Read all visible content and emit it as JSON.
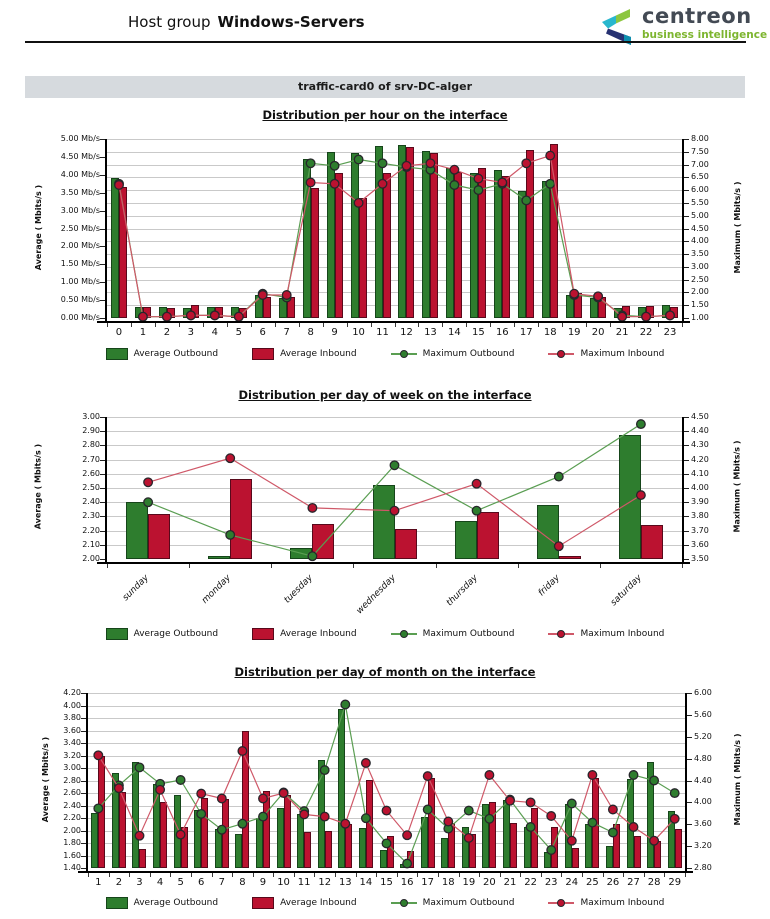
{
  "header": {
    "title_prefix": "Host group",
    "title_name": "Windows-Servers",
    "logo": {
      "brand": "centreon",
      "tagline": "business intelligence"
    }
  },
  "report_title": "traffic-card0 of srv-DC-alger",
  "legend": [
    {
      "key": "avg_out",
      "label": "Average Outbound",
      "type": "bar"
    },
    {
      "key": "avg_in",
      "label": "Average Inbound",
      "type": "bar"
    },
    {
      "key": "max_out",
      "label": "Maximum Outbound",
      "type": "line"
    },
    {
      "key": "max_in",
      "label": "Maximum Inbound",
      "type": "line"
    }
  ],
  "colors": {
    "bar_green": "#2e7d2e",
    "bar_green_edge": "#16451a",
    "bar_red": "#bb1230",
    "bar_red_edge": "#58091b",
    "line_green": "#5a9e52",
    "line_red": "#cf5868",
    "dot_green": "#2e7d2e",
    "dot_red": "#bb1230",
    "dot_edge": "#27262b",
    "grid": "#c9c9c9",
    "axis": "#000000",
    "titlebar_bg": "#d6dade",
    "titlebar_text": "#1c1c1c",
    "logo_teal": "#29b7ce",
    "logo_green": "#8cc63f",
    "logo_navy": "#273272",
    "logo_teal_dark": "#0d8fae",
    "logo_text": "#434a54",
    "logo_tagline": "#7db52f"
  },
  "chart_data": [
    {
      "type": "bar",
      "title": "Distribution per hour on the interface",
      "left_axis": {
        "label": "Average ( Mbits/s )",
        "min": 0,
        "max": 5,
        "step": 0.5,
        "suffix": " Mb/s"
      },
      "right_axis": {
        "label": "Maximum ( Mbits/s )",
        "min": 1,
        "max": 8,
        "step": 0.5,
        "suffix": ""
      },
      "legend_position": "bottom",
      "grid": "on",
      "categories": [
        "0",
        "1",
        "2",
        "3",
        "4",
        "5",
        "6",
        "7",
        "8",
        "9",
        "10",
        "11",
        "12",
        "13",
        "14",
        "15",
        "16",
        "17",
        "18",
        "19",
        "20",
        "21",
        "22",
        "23"
      ],
      "series": [
        {
          "name": "Average Outbound",
          "type": "bar",
          "axis": "left",
          "values": [
            3.9,
            0.32,
            0.3,
            0.28,
            0.3,
            0.3,
            0.65,
            0.55,
            4.45,
            4.65,
            4.6,
            4.8,
            4.82,
            4.67,
            4.18,
            4.04,
            4.14,
            3.54,
            3.82,
            0.64,
            0.55,
            0.28,
            0.3,
            0.35
          ]
        },
        {
          "name": "Average Inbound",
          "type": "bar",
          "axis": "left",
          "values": [
            3.65,
            0.32,
            0.27,
            0.35,
            0.3,
            0.28,
            0.6,
            0.58,
            3.62,
            4.05,
            3.35,
            4.05,
            4.77,
            4.6,
            4.08,
            4.18,
            3.96,
            4.68,
            4.86,
            0.7,
            0.6,
            0.33,
            0.33,
            0.32
          ]
        },
        {
          "name": "Maximum Outbound",
          "type": "line",
          "axis": "right",
          "values": [
            6.25,
            1.05,
            1.05,
            1.1,
            1.1,
            1.05,
            1.95,
            1.8,
            7.05,
            6.95,
            7.2,
            7.05,
            6.9,
            6.8,
            6.2,
            6.0,
            6.25,
            5.6,
            6.25,
            1.9,
            1.8,
            1.1,
            1.05,
            1.1
          ]
        },
        {
          "name": "Maximum Inbound",
          "type": "line",
          "axis": "right",
          "values": [
            6.2,
            1.05,
            1.05,
            1.1,
            1.1,
            1.05,
            1.9,
            1.9,
            6.3,
            6.25,
            5.5,
            6.25,
            6.95,
            7.05,
            6.8,
            6.45,
            6.3,
            7.05,
            7.35,
            1.95,
            1.85,
            1.05,
            1.05,
            1.1
          ]
        }
      ]
    },
    {
      "type": "bar",
      "title": "Distribution per day of week on the interface",
      "left_axis": {
        "label": "Average ( Mbits/s )",
        "min": 2,
        "max": 3,
        "step": 0.1,
        "suffix": ""
      },
      "right_axis": {
        "label": "Maximum ( Mbits/s )",
        "min": 3.5,
        "max": 4.5,
        "step": 0.1,
        "suffix": ""
      },
      "legend_position": "bottom",
      "grid": "on",
      "categories": [
        "sunday",
        "monday",
        "tuesday",
        "wednesday",
        "thursday",
        "friday",
        "saturday"
      ],
      "series": [
        {
          "name": "Average Outbound",
          "type": "bar",
          "axis": "left",
          "values": [
            2.4,
            2.02,
            2.08,
            2.52,
            2.27,
            2.38,
            2.87
          ]
        },
        {
          "name": "Average Inbound",
          "type": "bar",
          "axis": "left",
          "values": [
            2.32,
            2.56,
            2.25,
            2.21,
            2.33,
            2.02,
            2.24
          ]
        },
        {
          "name": "Maximum Outbound",
          "type": "line",
          "axis": "right",
          "values": [
            3.9,
            3.67,
            3.52,
            4.16,
            3.84,
            4.08,
            4.45
          ]
        },
        {
          "name": "Maximum Inbound",
          "type": "line",
          "axis": "right",
          "values": [
            4.04,
            4.21,
            3.86,
            3.84,
            4.03,
            3.59,
            3.95
          ]
        }
      ]
    },
    {
      "type": "bar",
      "title": "Distribution per day of month on the interface",
      "left_axis": {
        "label": "Average ( Mbits/s )",
        "min": 1.4,
        "max": 4.2,
        "step": 0.2,
        "suffix": ""
      },
      "right_axis": {
        "label": "Maximum ( Mbits/s )",
        "min": 2.8,
        "max": 6.0,
        "step": 0.4,
        "suffix": ""
      },
      "legend_position": "bottom",
      "grid": "on",
      "categories": [
        "1",
        "2",
        "3",
        "4",
        "5",
        "6",
        "7",
        "8",
        "9",
        "10",
        "11",
        "12",
        "13",
        "14",
        "15",
        "16",
        "17",
        "18",
        "19",
        "20",
        "21",
        "22",
        "23",
        "24",
        "25",
        "26",
        "27",
        "28",
        "29"
      ],
      "series": [
        {
          "name": "Average Outbound",
          "type": "bar",
          "axis": "left",
          "values": [
            2.28,
            2.92,
            3.1,
            2.75,
            2.57,
            2.33,
            2.02,
            1.95,
            2.2,
            2.36,
            2.26,
            3.13,
            3.95,
            2.04,
            1.69,
            1.47,
            2.21,
            1.88,
            2.06,
            2.42,
            2.49,
            2.06,
            1.66,
            2.43,
            2.1,
            1.75,
            2.82,
            3.09,
            2.32
          ]
        },
        {
          "name": "Average Inbound",
          "type": "bar",
          "axis": "left",
          "values": [
            3.2,
            2.62,
            1.71,
            2.46,
            2.06,
            2.52,
            2.5,
            3.6,
            2.63,
            2.57,
            1.97,
            2.0,
            2.1,
            2.81,
            1.92,
            1.68,
            2.84,
            2.12,
            1.94,
            2.45,
            2.12,
            2.36,
            2.06,
            1.72,
            2.84,
            2.1,
            1.92,
            1.84,
            2.03
          ]
        },
        {
          "name": "Maximum Outbound",
          "type": "line",
          "axis": "right",
          "values": [
            3.89,
            4.31,
            4.64,
            4.34,
            4.41,
            3.79,
            3.5,
            3.61,
            3.74,
            4.18,
            3.84,
            4.59,
            5.79,
            3.71,
            3.25,
            2.88,
            3.87,
            3.52,
            3.85,
            3.7,
            4.05,
            3.55,
            3.13,
            3.98,
            3.63,
            3.45,
            4.5,
            4.4,
            4.17
          ]
        },
        {
          "name": "Maximum Inbound",
          "type": "line",
          "axis": "right",
          "values": [
            4.86,
            4.26,
            3.39,
            4.23,
            3.41,
            4.16,
            4.07,
            4.94,
            4.07,
            4.17,
            3.78,
            3.74,
            3.61,
            4.72,
            3.85,
            3.4,
            4.48,
            3.65,
            3.35,
            4.5,
            4.03,
            4.0,
            3.75,
            3.3,
            4.5,
            3.87,
            3.55,
            3.3,
            3.7
          ]
        }
      ]
    }
  ]
}
